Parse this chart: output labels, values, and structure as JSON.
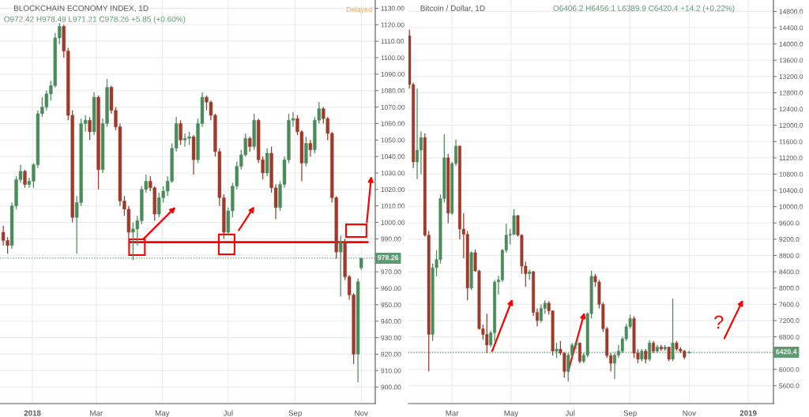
{
  "chart_data": [
    {
      "type": "candlestick",
      "title": "BLOCKCHAIN ECONOMY INDEX, 1D",
      "subtitle": "O972.42 H978.49 L971.21 C978.26 +5.85 (+0.60%)",
      "x": [
        "2017-12-05",
        "2017-12-09",
        "2017-12-13",
        "2017-12-17",
        "2017-12-21",
        "2017-12-25",
        "2017-12-29",
        "2018-01-02",
        "2018-01-06",
        "2018-01-10",
        "2018-01-14",
        "2018-01-18",
        "2018-01-22",
        "2018-01-26",
        "2018-01-30",
        "2018-02-03",
        "2018-02-07",
        "2018-02-11",
        "2018-02-15",
        "2018-02-19",
        "2018-02-23",
        "2018-02-27",
        "2018-03-03",
        "2018-03-07",
        "2018-03-11",
        "2018-03-15",
        "2018-03-19",
        "2018-03-23",
        "2018-03-27",
        "2018-03-31",
        "2018-04-04",
        "2018-04-08",
        "2018-04-12",
        "2018-04-16",
        "2018-04-20",
        "2018-04-24",
        "2018-04-28",
        "2018-05-02",
        "2018-05-06",
        "2018-05-10",
        "2018-05-14",
        "2018-05-18",
        "2018-05-22",
        "2018-05-26",
        "2018-05-30",
        "2018-06-03",
        "2018-06-07",
        "2018-06-11",
        "2018-06-15",
        "2018-06-19",
        "2018-06-23",
        "2018-06-27",
        "2018-07-01",
        "2018-07-05",
        "2018-07-09",
        "2018-07-13",
        "2018-07-17",
        "2018-07-21",
        "2018-07-25",
        "2018-07-29",
        "2018-08-02",
        "2018-08-06",
        "2018-08-10",
        "2018-08-14",
        "2018-08-18",
        "2018-08-22",
        "2018-08-26",
        "2018-08-30",
        "2018-09-03",
        "2018-09-07",
        "2018-09-11",
        "2018-09-15",
        "2018-09-19",
        "2018-09-23",
        "2018-09-27",
        "2018-10-01",
        "2018-10-05",
        "2018-10-09",
        "2018-10-13",
        "2018-10-17",
        "2018-10-21",
        "2018-10-25",
        "2018-10-29",
        "2018-11-01"
      ],
      "ohlc": [
        [
          994,
          998,
          986,
          989
        ],
        [
          989,
          991,
          981,
          986
        ],
        [
          986,
          1012,
          984,
          1010
        ],
        [
          1010,
          1028,
          1008,
          1026
        ],
        [
          1026,
          1035,
          1024,
          1031
        ],
        [
          1031,
          1032,
          1021,
          1023
        ],
        [
          1023,
          1027,
          1021,
          1025
        ],
        [
          1025,
          1036,
          1021,
          1035
        ],
        [
          1035,
          1068,
          1033,
          1066
        ],
        [
          1066,
          1076,
          1064,
          1070
        ],
        [
          1070,
          1080,
          1068,
          1078
        ],
        [
          1078,
          1086,
          1074,
          1083
        ],
        [
          1083,
          1115,
          1082,
          1112
        ],
        [
          1112,
          1121,
          1108,
          1119
        ],
        [
          1119,
          1120,
          1100,
          1104
        ],
        [
          1104,
          1106,
          1062,
          1065
        ],
        [
          1065,
          1068,
          1000,
          1003
        ],
        [
          1003,
          1016,
          981,
          1012
        ],
        [
          1012,
          1063,
          1010,
          1060
        ],
        [
          1060,
          1065,
          1055,
          1062
        ],
        [
          1062,
          1064,
          1050,
          1055
        ],
        [
          1055,
          1079,
          1053,
          1076
        ],
        [
          1076,
          1077,
          1020,
          1032
        ],
        [
          1032,
          1063,
          1030,
          1060
        ],
        [
          1060,
          1087,
          1058,
          1082
        ],
        [
          1082,
          1083,
          1066,
          1068
        ],
        [
          1068,
          1070,
          1056,
          1058
        ],
        [
          1058,
          1060,
          1010,
          1013
        ],
        [
          1013,
          1016,
          1004,
          1008
        ],
        [
          1008,
          1010,
          990,
          994
        ],
        [
          994,
          1000,
          977,
          996
        ],
        [
          996,
          1004,
          986,
          1001
        ],
        [
          1001,
          1022,
          999,
          1020
        ],
        [
          1020,
          1029,
          1018,
          1025
        ],
        [
          1025,
          1028,
          1019,
          1021
        ],
        [
          1021,
          1022,
          1001,
          1005
        ],
        [
          1005,
          1018,
          1003,
          1015
        ],
        [
          1015,
          1022,
          1012,
          1019
        ],
        [
          1019,
          1028,
          1016,
          1025
        ],
        [
          1025,
          1048,
          1024,
          1045
        ],
        [
          1045,
          1064,
          1043,
          1060
        ],
        [
          1060,
          1062,
          1047,
          1050
        ],
        [
          1050,
          1054,
          1046,
          1051
        ],
        [
          1051,
          1055,
          1047,
          1052
        ],
        [
          1052,
          1053,
          1029,
          1038
        ],
        [
          1038,
          1063,
          1036,
          1060
        ],
        [
          1060,
          1079,
          1058,
          1076
        ],
        [
          1076,
          1077,
          1068,
          1073
        ],
        [
          1073,
          1074,
          1062,
          1065
        ],
        [
          1065,
          1066,
          1040,
          1043
        ],
        [
          1043,
          1045,
          1010,
          1015
        ],
        [
          1015,
          1017,
          990,
          994
        ],
        [
          994,
          1009,
          992,
          1007
        ],
        [
          1007,
          1024,
          1003,
          1022
        ],
        [
          1022,
          1037,
          1020,
          1034
        ],
        [
          1034,
          1044,
          1032,
          1041
        ],
        [
          1041,
          1054,
          1040,
          1051
        ],
        [
          1051,
          1052,
          1043,
          1046
        ],
        [
          1046,
          1066,
          1044,
          1062
        ],
        [
          1062,
          1063,
          1036,
          1038
        ],
        [
          1038,
          1040,
          1026,
          1030
        ],
        [
          1030,
          1045,
          1028,
          1042
        ],
        [
          1042,
          1046,
          1018,
          1021
        ],
        [
          1021,
          1023,
          1002,
          1009
        ],
        [
          1009,
          1025,
          1007,
          1023
        ],
        [
          1023,
          1040,
          1021,
          1038
        ],
        [
          1038,
          1066,
          1036,
          1062
        ],
        [
          1062,
          1067,
          1058,
          1063
        ],
        [
          1063,
          1065,
          1053,
          1055
        ],
        [
          1055,
          1056,
          1025,
          1036
        ],
        [
          1036,
          1052,
          1034,
          1048
        ],
        [
          1048,
          1050,
          1040,
          1044
        ],
        [
          1044,
          1064,
          1042,
          1062
        ],
        [
          1062,
          1073,
          1060,
          1069
        ],
        [
          1069,
          1070,
          1060,
          1063
        ],
        [
          1063,
          1064,
          1050,
          1054
        ],
        [
          1054,
          1055,
          1012,
          1015
        ],
        [
          1015,
          1016,
          978,
          982
        ],
        [
          982,
          992,
          955,
          988
        ],
        [
          988,
          990,
          965,
          967
        ],
        [
          967,
          968,
          953,
          956
        ],
        [
          956,
          957,
          914,
          920
        ],
        [
          920,
          966,
          903,
          964
        ],
        [
          972.42,
          978.49,
          971.21,
          978.26
        ]
      ],
      "colors": [
        "#9c3b2b",
        "#9c3b2b",
        "#4b8b5b",
        "#4b8b5b",
        "#4b8b5b",
        "#9c3b2b",
        "#4b8b5b",
        "#4b8b5b",
        "#4b8b5b",
        "#4b8b5b",
        "#4b8b5b",
        "#4b8b5b",
        "#4b8b5b",
        "#4b8b5b",
        "#9c3b2b",
        "#9c3b2b",
        "#9c3b2b",
        "#4b8b5b",
        "#4b8b5b",
        "#4b8b5b",
        "#9c3b2b",
        "#4b8b5b",
        "#9c3b2b",
        "#4b8b5b",
        "#4b8b5b",
        "#9c3b2b",
        "#9c3b2b",
        "#9c3b2b",
        "#9c3b2b",
        "#9c3b2b",
        "#4b8b5b",
        "#4b8b5b",
        "#4b8b5b",
        "#4b8b5b",
        "#9c3b2b",
        "#9c3b2b",
        "#4b8b5b",
        "#4b8b5b",
        "#4b8b5b",
        "#4b8b5b",
        "#4b8b5b",
        "#9c3b2b",
        "#4b8b5b",
        "#4b8b5b",
        "#9c3b2b",
        "#4b8b5b",
        "#4b8b5b",
        "#9c3b2b",
        "#9c3b2b",
        "#9c3b2b",
        "#9c3b2b",
        "#9c3b2b",
        "#4b8b5b",
        "#4b8b5b",
        "#4b8b5b",
        "#4b8b5b",
        "#4b8b5b",
        "#9c3b2b",
        "#4b8b5b",
        "#9c3b2b",
        "#9c3b2b",
        "#4b8b5b",
        "#9c3b2b",
        "#9c3b2b",
        "#4b8b5b",
        "#4b8b5b",
        "#4b8b5b",
        "#4b8b5b",
        "#9c3b2b",
        "#9c3b2b",
        "#4b8b5b",
        "#9c3b2b",
        "#4b8b5b",
        "#4b8b5b",
        "#9c3b2b",
        "#9c3b2b",
        "#9c3b2b",
        "#9c3b2b",
        "#4b8b5b",
        "#9c3b2b",
        "#9c3b2b",
        "#9c3b2b",
        "#4b8b5b",
        "#4b8b5b"
      ],
      "series": [
        {
          "type": "line",
          "x": [
            "2018-04-01",
            "2018-11-07"
          ],
          "values": [
            988,
            988
          ],
          "color": "#ff0000"
        }
      ],
      "xlim": [
        "2017-12-02",
        "2018-11-14"
      ],
      "xticks": [
        {
          "value": "2018-01-01",
          "label": "2018"
        },
        {
          "value": "2018-03-01",
          "label": "Mar"
        },
        {
          "value": "2018-05-01",
          "label": "May"
        },
        {
          "value": "2018-07-01",
          "label": "Jul"
        },
        {
          "value": "2018-09-01",
          "label": "Sep"
        },
        {
          "value": "2018-11-01",
          "label": "Nov"
        }
      ],
      "ylim": [
        890,
        1135
      ],
      "yticks": [
        {
          "value": 900,
          "label": "900.00"
        },
        {
          "value": 910,
          "label": "910.00"
        },
        {
          "value": 920,
          "label": "920.00"
        },
        {
          "value": 930,
          "label": "930.00"
        },
        {
          "value": 940,
          "label": "940.00"
        },
        {
          "value": 950,
          "label": "950.00"
        },
        {
          "value": 960,
          "label": "960.00"
        },
        {
          "value": 970,
          "label": "970.00"
        },
        {
          "value": 980,
          "label": null
        },
        {
          "value": 990,
          "label": "990.00"
        },
        {
          "value": 1000,
          "label": "1000.00"
        },
        {
          "value": 1010,
          "label": "1010.00"
        },
        {
          "value": 1020,
          "label": "1020.00"
        },
        {
          "value": 1030,
          "label": "1030.00"
        },
        {
          "value": 1040,
          "label": "1040.00"
        },
        {
          "value": 1050,
          "label": "1050.00"
        },
        {
          "value": 1060,
          "label": "1060.00"
        },
        {
          "value": 1070,
          "label": "1070.00"
        },
        {
          "value": 1080,
          "label": "1080.00"
        },
        {
          "value": 1090,
          "label": "1090.00"
        },
        {
          "value": 1100,
          "label": "1100.00"
        },
        {
          "value": 1110,
          "label": "1110.00"
        },
        {
          "value": 1120,
          "label": "1120.00"
        },
        {
          "value": 1130,
          "label": "1130.00"
        }
      ],
      "ref_lines": [
        {
          "axis": "y",
          "value": 978.26,
          "label": "978.26",
          "color": "#5d9a6f",
          "line_style": "dotted"
        }
      ],
      "annotations": [
        "Delayed"
      ],
      "grid": true
    },
    {
      "type": "candlestick",
      "title": "Bitcoin / Dollar, 1D",
      "subtitle": "O6406.2 H6456.1 L6389.9 C6420.4 +14.2 (+0.22%)",
      "x": [
        "2018-01-16",
        "2018-01-20",
        "2018-01-24",
        "2018-01-28",
        "2018-02-01",
        "2018-02-05",
        "2018-02-09",
        "2018-02-13",
        "2018-02-17",
        "2018-02-21",
        "2018-02-25",
        "2018-03-01",
        "2018-03-05",
        "2018-03-09",
        "2018-03-13",
        "2018-03-17",
        "2018-03-21",
        "2018-03-25",
        "2018-03-29",
        "2018-04-02",
        "2018-04-06",
        "2018-04-10",
        "2018-04-14",
        "2018-04-18",
        "2018-04-22",
        "2018-04-26",
        "2018-04-30",
        "2018-05-04",
        "2018-05-08",
        "2018-05-12",
        "2018-05-16",
        "2018-05-20",
        "2018-05-24",
        "2018-05-28",
        "2018-06-01",
        "2018-06-05",
        "2018-06-09",
        "2018-06-13",
        "2018-06-17",
        "2018-06-21",
        "2018-06-25",
        "2018-06-29",
        "2018-07-03",
        "2018-07-07",
        "2018-07-11",
        "2018-07-15",
        "2018-07-19",
        "2018-07-23",
        "2018-07-27",
        "2018-07-31",
        "2018-08-04",
        "2018-08-08",
        "2018-08-12",
        "2018-08-16",
        "2018-08-20",
        "2018-08-24",
        "2018-08-28",
        "2018-09-01",
        "2018-09-05",
        "2018-09-09",
        "2018-09-13",
        "2018-09-17",
        "2018-09-21",
        "2018-09-25",
        "2018-09-29",
        "2018-10-03",
        "2018-10-07",
        "2018-10-11",
        "2018-10-15",
        "2018-10-19",
        "2018-10-23",
        "2018-10-27",
        "2018-11-01"
      ],
      "ohlc": [
        [
          14200,
          14350,
          12900,
          13000
        ],
        [
          13000,
          13050,
          10950,
          11100
        ],
        [
          11100,
          12900,
          10680,
          11390
        ],
        [
          11390,
          11850,
          10800,
          11700
        ],
        [
          11700,
          11800,
          9260,
          9300
        ],
        [
          9300,
          9400,
          5950,
          6860
        ],
        [
          6860,
          8600,
          6700,
          8500
        ],
        [
          8500,
          8930,
          8290,
          8700
        ],
        [
          8700,
          10300,
          8600,
          10200
        ],
        [
          10200,
          11780,
          10100,
          11200
        ],
        [
          11200,
          11300,
          9590,
          9840
        ],
        [
          9840,
          11100,
          9800,
          11060
        ],
        [
          11060,
          11650,
          11000,
          11490
        ],
        [
          11490,
          11500,
          9200,
          9450
        ],
        [
          9450,
          9840,
          8730,
          9320
        ],
        [
          9320,
          9400,
          7700,
          8000
        ],
        [
          8000,
          8900,
          7950,
          8870
        ],
        [
          8870,
          8950,
          8400,
          8420
        ],
        [
          8420,
          8450,
          6980,
          7000
        ],
        [
          7000,
          7100,
          6730,
          6860
        ],
        [
          6860,
          7370,
          6400,
          6600
        ],
        [
          6600,
          6950,
          6550,
          6900
        ],
        [
          6900,
          8200,
          6700,
          8150
        ],
        [
          8150,
          8300,
          7840,
          8200
        ],
        [
          8200,
          8960,
          8150,
          8930
        ],
        [
          8930,
          9580,
          8870,
          9300
        ],
        [
          9300,
          9450,
          9070,
          9320
        ],
        [
          9320,
          9940,
          9300,
          9780
        ],
        [
          9780,
          9800,
          9260,
          9300
        ],
        [
          9300,
          9320,
          8350,
          8540
        ],
        [
          8540,
          8650,
          8030,
          8350
        ],
        [
          8350,
          8450,
          8200,
          8400
        ],
        [
          8400,
          8420,
          7310,
          7400
        ],
        [
          7400,
          7500,
          7060,
          7200
        ],
        [
          7200,
          7600,
          7150,
          7500
        ],
        [
          7500,
          7700,
          7370,
          7630
        ],
        [
          7630,
          7680,
          7350,
          7440
        ],
        [
          7440,
          7450,
          6340,
          6450
        ],
        [
          6450,
          6650,
          6280,
          6500
        ],
        [
          6500,
          6700,
          6350,
          6400
        ],
        [
          6400,
          6420,
          5800,
          5950
        ],
        [
          5950,
          6400,
          5700,
          6350
        ],
        [
          6350,
          6650,
          6300,
          6600
        ],
        [
          6600,
          6700,
          6500,
          6650
        ],
        [
          6650,
          6660,
          6150,
          6200
        ],
        [
          6200,
          6400,
          6150,
          6350
        ],
        [
          6350,
          7400,
          6300,
          7370
        ],
        [
          7370,
          8420,
          7250,
          8290
        ],
        [
          8290,
          8350,
          8030,
          8150
        ],
        [
          8150,
          8200,
          7500,
          7600
        ],
        [
          7600,
          7650,
          6920,
          7000
        ],
        [
          7000,
          7050,
          6280,
          6340
        ],
        [
          6340,
          6400,
          5950,
          6150
        ],
        [
          6150,
          6400,
          5760,
          6350
        ],
        [
          6350,
          6600,
          6280,
          6450
        ],
        [
          6450,
          6800,
          6400,
          6750
        ],
        [
          6750,
          7120,
          6700,
          7050
        ],
        [
          7050,
          7350,
          7000,
          7250
        ],
        [
          7250,
          7310,
          6280,
          6400
        ],
        [
          6400,
          6500,
          6150,
          6250
        ],
        [
          6250,
          6500,
          6200,
          6450
        ],
        [
          6450,
          6500,
          6150,
          6250
        ],
        [
          6250,
          6720,
          6200,
          6650
        ],
        [
          6650,
          6700,
          6400,
          6450
        ],
        [
          6450,
          6600,
          6400,
          6550
        ],
        [
          6550,
          6600,
          6450,
          6500
        ],
        [
          6500,
          6600,
          6450,
          6550
        ],
        [
          6550,
          6560,
          6210,
          6250
        ],
        [
          6250,
          7740,
          6200,
          6650
        ],
        [
          6650,
          6700,
          6450,
          6500
        ],
        [
          6500,
          6550,
          6400,
          6450
        ],
        [
          6450,
          6480,
          6250,
          6300
        ],
        [
          6406.2,
          6456.1,
          6389.9,
          6420.4
        ]
      ],
      "colors": [
        "#9c3b2b",
        "#9c3b2b",
        "#4b8b5b",
        "#4b8b5b",
        "#9c3b2b",
        "#9c3b2b",
        "#4b8b5b",
        "#4b8b5b",
        "#4b8b5b",
        "#4b8b5b",
        "#9c3b2b",
        "#4b8b5b",
        "#4b8b5b",
        "#9c3b2b",
        "#9c3b2b",
        "#9c3b2b",
        "#4b8b5b",
        "#9c3b2b",
        "#9c3b2b",
        "#9c3b2b",
        "#9c3b2b",
        "#4b8b5b",
        "#4b8b5b",
        "#4b8b5b",
        "#4b8b5b",
        "#4b8b5b",
        "#4b8b5b",
        "#4b8b5b",
        "#9c3b2b",
        "#9c3b2b",
        "#9c3b2b",
        "#4b8b5b",
        "#9c3b2b",
        "#9c3b2b",
        "#4b8b5b",
        "#4b8b5b",
        "#9c3b2b",
        "#9c3b2b",
        "#4b8b5b",
        "#9c3b2b",
        "#9c3b2b",
        "#4b8b5b",
        "#4b8b5b",
        "#4b8b5b",
        "#9c3b2b",
        "#4b8b5b",
        "#4b8b5b",
        "#4b8b5b",
        "#9c3b2b",
        "#9c3b2b",
        "#9c3b2b",
        "#9c3b2b",
        "#9c3b2b",
        "#4b8b5b",
        "#4b8b5b",
        "#4b8b5b",
        "#4b8b5b",
        "#4b8b5b",
        "#9c3b2b",
        "#9c3b2b",
        "#4b8b5b",
        "#9c3b2b",
        "#4b8b5b",
        "#9c3b2b",
        "#4b8b5b",
        "#9c3b2b",
        "#4b8b5b",
        "#9c3b2b",
        "#4b8b5b",
        "#9c3b2b",
        "#9c3b2b",
        "#9c3b2b",
        "#4b8b5b"
      ],
      "xlim": [
        "2018-01-15",
        "2019-01-27"
      ],
      "xticks": [
        {
          "value": "2018-03-01",
          "label": "Mar"
        },
        {
          "value": "2018-05-01",
          "label": "May"
        },
        {
          "value": "2018-07-01",
          "label": "Jul"
        },
        {
          "value": "2018-09-01",
          "label": "Sep"
        },
        {
          "value": "2018-11-01",
          "label": "Nov"
        },
        {
          "value": "2019-01-01",
          "label": "2019"
        }
      ],
      "ylim": [
        5160,
        15080
      ],
      "yticks": [
        {
          "value": 5600,
          "label": "5600.0"
        },
        {
          "value": 6000,
          "label": "6000.0"
        },
        {
          "value": 6400,
          "label": null
        },
        {
          "value": 6800,
          "label": "6800.0"
        },
        {
          "value": 7200,
          "label": "7200.0"
        },
        {
          "value": 7600,
          "label": "7600.0"
        },
        {
          "value": 8000,
          "label": "8000.0"
        },
        {
          "value": 8400,
          "label": "8400.0"
        },
        {
          "value": 8800,
          "label": "8800.0"
        },
        {
          "value": 9200,
          "label": "9200.0"
        },
        {
          "value": 9600,
          "label": "9600.0"
        },
        {
          "value": 10000,
          "label": "10000.0"
        },
        {
          "value": 10400,
          "label": "10400.0"
        },
        {
          "value": 10800,
          "label": "10800.0"
        },
        {
          "value": 11200,
          "label": "11200.0"
        },
        {
          "value": 11600,
          "label": "11600.0"
        },
        {
          "value": 12000,
          "label": "12000.0"
        },
        {
          "value": 12400,
          "label": "12400.0"
        },
        {
          "value": 12800,
          "label": "12800.0"
        },
        {
          "value": 13200,
          "label": "13200.0"
        },
        {
          "value": 13600,
          "label": "13600.0"
        },
        {
          "value": 14000,
          "label": "14000.0"
        },
        {
          "value": 14400,
          "label": "14400.0"
        },
        {
          "value": 14800,
          "label": "14800.0"
        }
      ],
      "ref_lines": [
        {
          "axis": "y",
          "value": 6420.4,
          "label": "6420.4",
          "color": "#5d9a6f",
          "line_style": "dotted"
        }
      ],
      "annotations": [
        "?"
      ],
      "grid": true
    }
  ]
}
